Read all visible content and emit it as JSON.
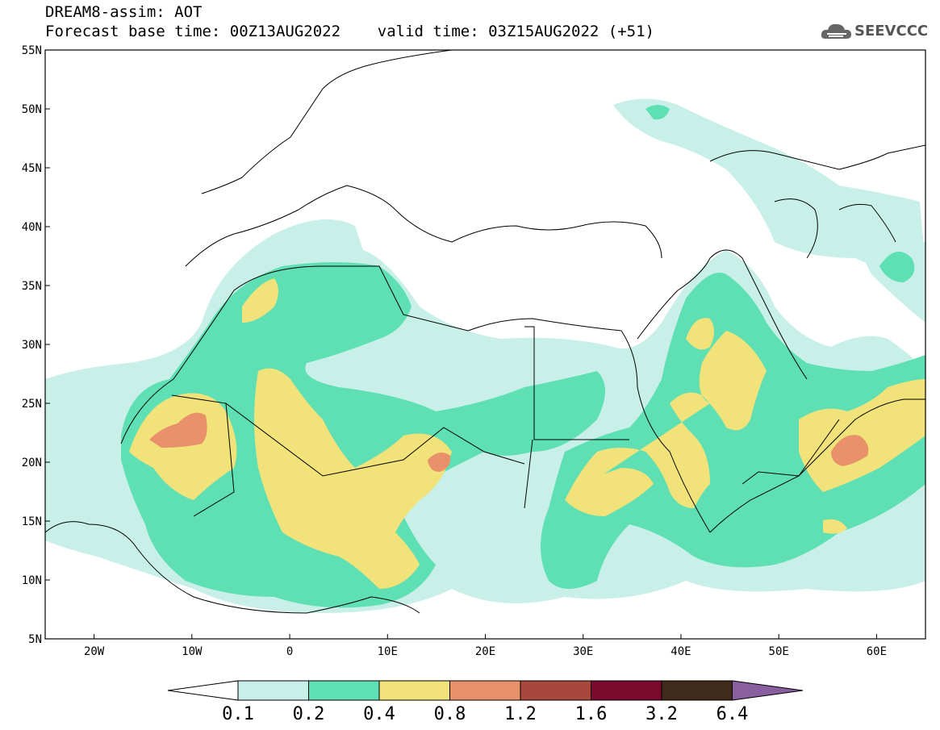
{
  "header": {
    "line1": "DREAM8-assim: AOT",
    "line2": "Forecast base time: 00Z13AUG2022    valid time: 03Z15AUG2022 (+51)"
  },
  "logo": {
    "text": "SEEVCCC",
    "icon": "cloud-icon"
  },
  "map": {
    "lat_ticks": [
      "55N",
      "50N",
      "45N",
      "40N",
      "35N",
      "30N",
      "25N",
      "20N",
      "15N",
      "10N",
      "5N"
    ],
    "lon_ticks": [
      "20W",
      "10W",
      "0",
      "10E",
      "20E",
      "30E",
      "40E",
      "50E",
      "60E"
    ],
    "lon_range": [
      -25,
      65
    ],
    "lat_range": [
      5,
      55
    ]
  },
  "colorbar": {
    "labels": [
      "0.1",
      "0.2",
      "0.4",
      "0.8",
      "1.2",
      "1.6",
      "3.2",
      "6.4"
    ],
    "colors": [
      "#ffffff",
      "#c8f0e8",
      "#5ee0b4",
      "#f2e27a",
      "#e8916a",
      "#a8473e",
      "#7a0a2e",
      "#3f2a1c",
      "#8a5fa0"
    ]
  }
}
